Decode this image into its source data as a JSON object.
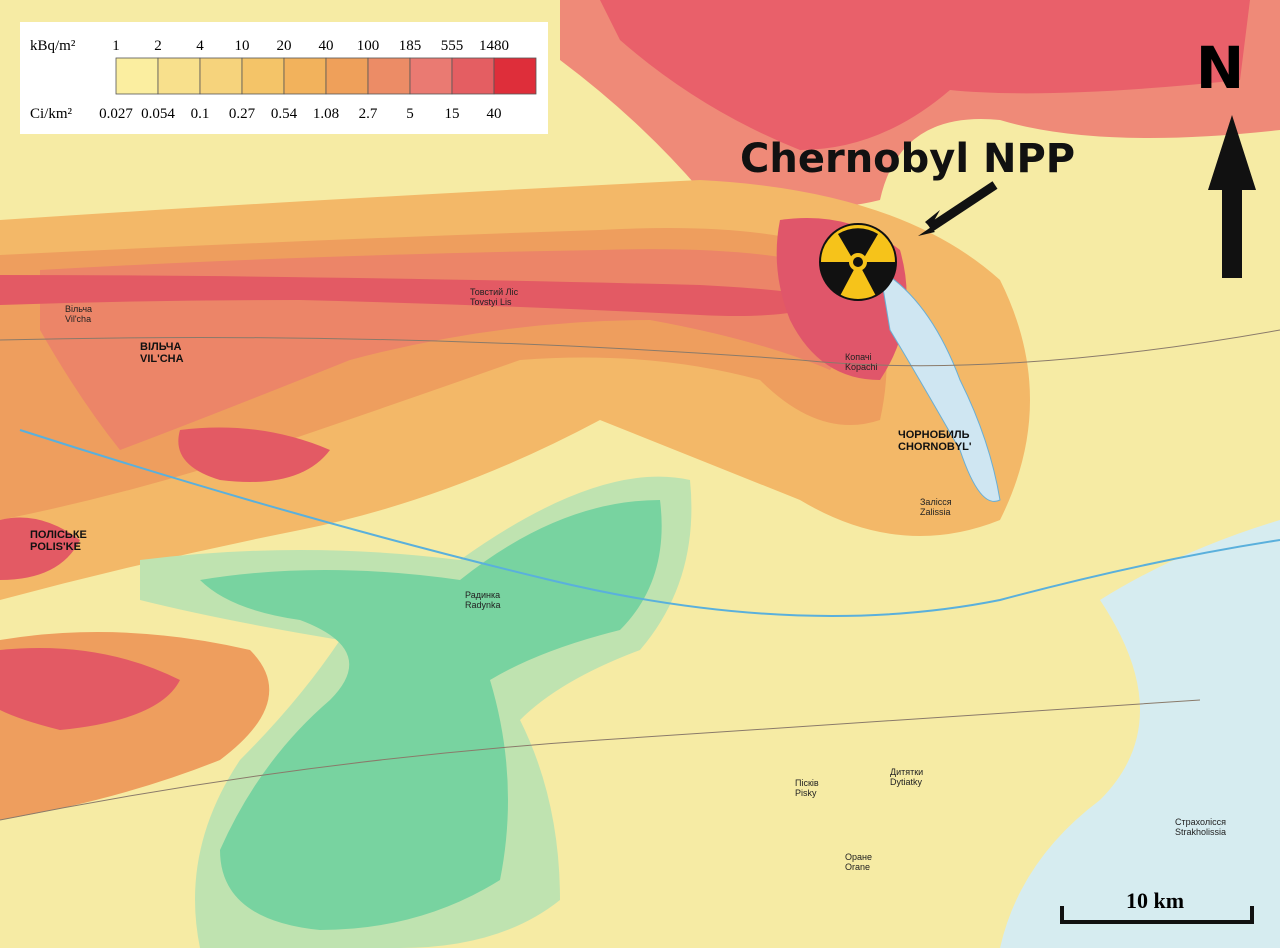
{
  "legend": {
    "unit_top": "kBq/m²",
    "unit_bottom": "Ci/km²",
    "top_values": [
      1,
      2,
      4,
      10,
      20,
      40,
      100,
      185,
      555,
      1480
    ],
    "bottom_values": [
      0.027,
      0.054,
      0.1,
      0.27,
      0.54,
      1.08,
      2.7,
      5,
      15,
      40
    ],
    "colors": [
      "#fbeea0",
      "#f8e08c",
      "#f6d37c",
      "#f4c468",
      "#f2b25c",
      "#efa05a",
      "#ec8c66",
      "#ea7a72",
      "#e45e62",
      "#de2e3a"
    ]
  },
  "annotation": "Chernobyl NPP",
  "north": "N",
  "scale_bar": "10 km",
  "places": [
    {
      "ua": "ПОЛІСЬКЕ",
      "en": "POLIS'KE"
    },
    {
      "ua": "ВІЛЬЧА",
      "en": "VIL'CHA"
    },
    {
      "ua": "ЧОРНОБИЛЬ",
      "en": "CHORNOBYL'"
    },
    {
      "ua": "Товстий Ліс",
      "en": "Tovstyi Lis"
    },
    {
      "ua": "Копачі",
      "en": "Kopachi"
    },
    {
      "ua": "Залісся",
      "en": "Zalissia"
    },
    {
      "ua": "Радинка",
      "en": "Radynka"
    },
    {
      "ua": "Дитятки",
      "en": "Dytiatky"
    },
    {
      "ua": "Страхолісся",
      "en": "Strakholissia"
    },
    {
      "ua": "Оране",
      "en": "Orane"
    },
    {
      "ua": "Пісків",
      "en": "Pisky"
    },
    {
      "ua": "Вільча",
      "en": "Vil'cha"
    }
  ]
}
